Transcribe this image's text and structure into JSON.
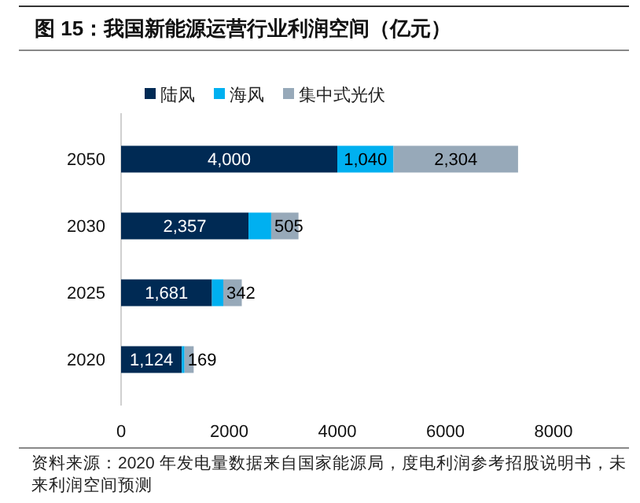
{
  "chart_data": {
    "type": "bar",
    "orientation": "horizontal",
    "stacked": true,
    "title": "图 15：我国新能源运营行业利润空间（亿元）",
    "categories": [
      "2050",
      "2030",
      "2025",
      "2020"
    ],
    "series": [
      {
        "name": "陆风",
        "color": "#002a54",
        "values": [
          4000,
          2357,
          1681,
          1124
        ],
        "value_labels": [
          "4,000",
          "2,357",
          "1,681",
          "1,124"
        ]
      },
      {
        "name": "海风",
        "color": "#00b0f0",
        "values": [
          1040,
          420,
          210,
          50
        ],
        "value_labels": [
          "1,040",
          null,
          null,
          null
        ]
      },
      {
        "name": "集中式光伏",
        "color": "#97a9b9",
        "values": [
          2304,
          505,
          342,
          169
        ],
        "value_labels": [
          "2,304",
          "505",
          "342",
          "169"
        ]
      }
    ],
    "xlim": [
      0,
      8000
    ],
    "xticks": [
      0,
      2000,
      4000,
      6000,
      8000
    ],
    "grid": false,
    "legend": "top",
    "annotations": [
      "资料来源：2020 年发电量数据来自国家能源局，度电利润参考招股说明书，未来利润空间预测"
    ]
  }
}
